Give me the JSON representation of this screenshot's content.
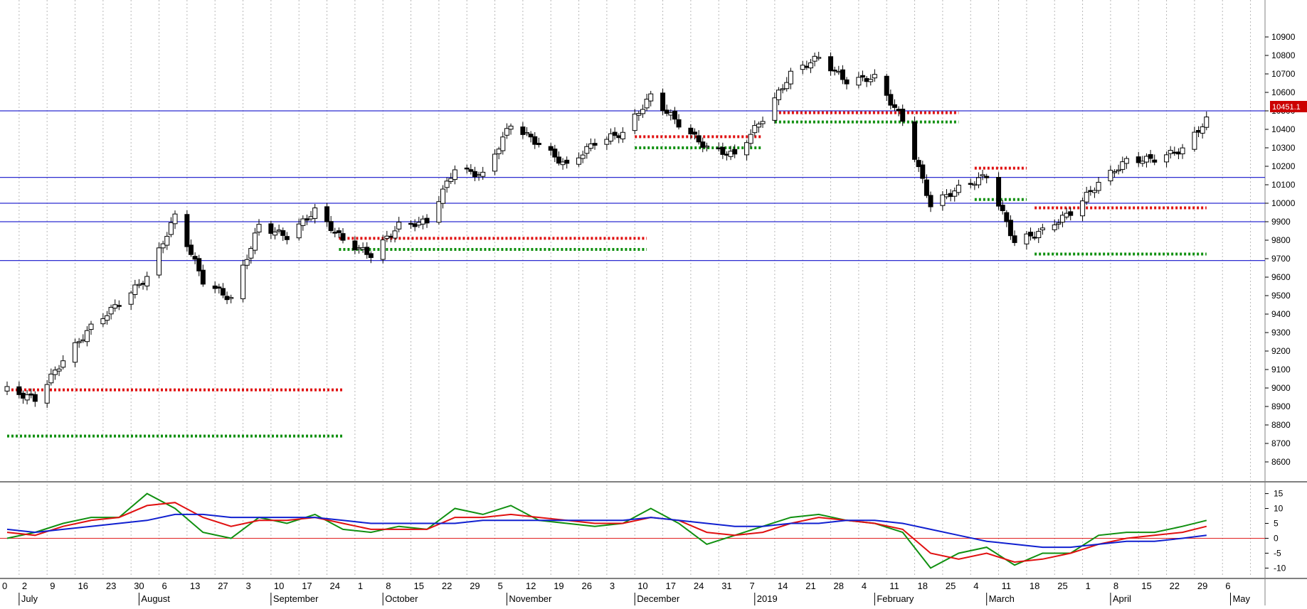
{
  "chart_data": {
    "type": "candlestick",
    "price_axis": {
      "ylim": [
        8500,
        11100
      ],
      "ticks": [
        8600,
        8700,
        8800,
        8900,
        9000,
        9100,
        9200,
        9300,
        9400,
        9500,
        9600,
        9700,
        9800,
        9900,
        10000,
        10100,
        10200,
        10300,
        10400,
        10500,
        10600,
        10700,
        10800,
        10900
      ]
    },
    "last_price_label": "10451.1",
    "indicator_axis": {
      "ylim": [
        -13,
        18
      ],
      "ticks": [
        15,
        10,
        5,
        0,
        -5,
        -10
      ],
      "tick_labels": [
        "15",
        "10",
        "5",
        "0",
        "-5",
        "-10"
      ]
    },
    "x_day_labels": [
      "0",
      "2",
      "9",
      "16",
      "23",
      "30",
      "6",
      "13",
      "27",
      "3",
      "10",
      "17",
      "24",
      "1",
      "8",
      "15",
      "22",
      "29",
      "5",
      "12",
      "19",
      "26",
      "3",
      "10",
      "17",
      "24",
      "31",
      "7",
      "14",
      "21",
      "28",
      "4",
      "11",
      "18",
      "25",
      "4",
      "11",
      "18",
      "25",
      "1",
      "8",
      "15",
      "22",
      "29",
      "6"
    ],
    "x_month_labels": [
      "July",
      "August",
      "September",
      "October",
      "November",
      "December",
      "2019",
      "February",
      "March",
      "April",
      "May"
    ],
    "horizontal_levels": [
      10500,
      10140,
      10000,
      9900,
      9690
    ],
    "dotted_levels": [
      {
        "color": "red",
        "value": 8990,
        "from": "2018-06-29",
        "to": "2018-09-21"
      },
      {
        "color": "green",
        "value": 8740,
        "from": "2018-06-29",
        "to": "2018-09-21"
      },
      {
        "color": "red",
        "value": 9810,
        "from": "2018-09-20",
        "to": "2018-12-06"
      },
      {
        "color": "green",
        "value": 9750,
        "from": "2018-09-20",
        "to": "2018-12-06"
      },
      {
        "color": "red",
        "value": 10360,
        "from": "2018-12-03",
        "to": "2019-01-04"
      },
      {
        "color": "green",
        "value": 10300,
        "from": "2018-12-03",
        "to": "2019-01-04"
      },
      {
        "color": "red",
        "value": 10490,
        "from": "2019-01-07",
        "to": "2019-02-22"
      },
      {
        "color": "green",
        "value": 10440,
        "from": "2019-01-07",
        "to": "2019-02-22"
      },
      {
        "color": "red",
        "value": 10190,
        "from": "2019-02-26",
        "to": "2019-03-11"
      },
      {
        "color": "green",
        "value": 10020,
        "from": "2019-02-26",
        "to": "2019-03-11"
      },
      {
        "color": "red",
        "value": 9975,
        "from": "2019-03-13",
        "to": "2019-04-25"
      },
      {
        "color": "green",
        "value": 9725,
        "from": "2019-03-13",
        "to": "2019-04-25"
      }
    ],
    "weekly_closes": [
      {
        "date": "2018-06-29",
        "close": 8990
      },
      {
        "date": "2018-07-06",
        "close": 8940
      },
      {
        "date": "2018-07-13",
        "close": 9150
      },
      {
        "date": "2018-07-20",
        "close": 9330
      },
      {
        "date": "2018-07-27",
        "close": 9460
      },
      {
        "date": "2018-08-03",
        "close": 9600
      },
      {
        "date": "2018-08-10",
        "close": 9930
      },
      {
        "date": "2018-08-17",
        "close": 9580
      },
      {
        "date": "2018-08-24",
        "close": 9480
      },
      {
        "date": "2018-08-31",
        "close": 9880
      },
      {
        "date": "2018-09-07",
        "close": 9820
      },
      {
        "date": "2018-09-14",
        "close": 9960
      },
      {
        "date": "2018-09-21",
        "close": 9800
      },
      {
        "date": "2018-09-28",
        "close": 9720
      },
      {
        "date": "2018-10-05",
        "close": 9880
      },
      {
        "date": "2018-10-12",
        "close": 9900
      },
      {
        "date": "2018-10-19",
        "close": 10190
      },
      {
        "date": "2018-10-26",
        "close": 10150
      },
      {
        "date": "2018-11-02",
        "close": 10430
      },
      {
        "date": "2018-11-09",
        "close": 10320
      },
      {
        "date": "2018-11-16",
        "close": 10200
      },
      {
        "date": "2018-11-23",
        "close": 10330
      },
      {
        "date": "2018-11-30",
        "close": 10380
      },
      {
        "date": "2018-12-07",
        "close": 10580
      },
      {
        "date": "2018-12-14",
        "close": 10430
      },
      {
        "date": "2018-12-21",
        "close": 10300
      },
      {
        "date": "2018-12-28",
        "close": 10260
      },
      {
        "date": "2019-01-04",
        "close": 10460
      },
      {
        "date": "2019-01-11",
        "close": 10700
      },
      {
        "date": "2019-01-18",
        "close": 10790
      },
      {
        "date": "2019-01-25",
        "close": 10660
      },
      {
        "date": "2019-02-01",
        "close": 10680
      },
      {
        "date": "2019-02-08",
        "close": 10450
      },
      {
        "date": "2019-02-15",
        "close": 9990
      },
      {
        "date": "2019-02-22",
        "close": 10080
      },
      {
        "date": "2019-03-01",
        "close": 10150
      },
      {
        "date": "2019-03-08",
        "close": 9790
      },
      {
        "date": "2019-03-15",
        "close": 9850
      },
      {
        "date": "2019-03-22",
        "close": 9950
      },
      {
        "date": "2019-03-29",
        "close": 10110
      },
      {
        "date": "2019-04-05",
        "close": 10230
      },
      {
        "date": "2019-04-12",
        "close": 10240
      },
      {
        "date": "2019-04-19",
        "close": 10290
      },
      {
        "date": "2019-04-25",
        "close": 10451
      }
    ],
    "indicator": {
      "zero_line": true,
      "series": [
        {
          "color": "green",
          "values": [
            {
              "date": "2018-06-29",
              "v": 0
            },
            {
              "date": "2018-07-06",
              "v": 2
            },
            {
              "date": "2018-07-13",
              "v": 5
            },
            {
              "date": "2018-07-20",
              "v": 7
            },
            {
              "date": "2018-07-27",
              "v": 7
            },
            {
              "date": "2018-08-03",
              "v": 15
            },
            {
              "date": "2018-08-10",
              "v": 10
            },
            {
              "date": "2018-08-17",
              "v": 2
            },
            {
              "date": "2018-08-24",
              "v": 0
            },
            {
              "date": "2018-08-31",
              "v": 7
            },
            {
              "date": "2018-09-07",
              "v": 5
            },
            {
              "date": "2018-09-14",
              "v": 8
            },
            {
              "date": "2018-09-21",
              "v": 3
            },
            {
              "date": "2018-09-28",
              "v": 2
            },
            {
              "date": "2018-10-05",
              "v": 4
            },
            {
              "date": "2018-10-12",
              "v": 3
            },
            {
              "date": "2018-10-19",
              "v": 10
            },
            {
              "date": "2018-10-26",
              "v": 8
            },
            {
              "date": "2018-11-02",
              "v": 11
            },
            {
              "date": "2018-11-09",
              "v": 6
            },
            {
              "date": "2018-11-16",
              "v": 5
            },
            {
              "date": "2018-11-23",
              "v": 4
            },
            {
              "date": "2018-11-30",
              "v": 5
            },
            {
              "date": "2018-12-07",
              "v": 10
            },
            {
              "date": "2018-12-14",
              "v": 5
            },
            {
              "date": "2018-12-21",
              "v": -2
            },
            {
              "date": "2018-12-28",
              "v": 1
            },
            {
              "date": "2019-01-04",
              "v": 4
            },
            {
              "date": "2019-01-11",
              "v": 7
            },
            {
              "date": "2019-01-18",
              "v": 8
            },
            {
              "date": "2019-01-25",
              "v": 6
            },
            {
              "date": "2019-02-01",
              "v": 5
            },
            {
              "date": "2019-02-08",
              "v": 2
            },
            {
              "date": "2019-02-15",
              "v": -10
            },
            {
              "date": "2019-02-22",
              "v": -5
            },
            {
              "date": "2019-03-01",
              "v": -3
            },
            {
              "date": "2019-03-08",
              "v": -9
            },
            {
              "date": "2019-03-15",
              "v": -5
            },
            {
              "date": "2019-03-22",
              "v": -5
            },
            {
              "date": "2019-03-29",
              "v": 1
            },
            {
              "date": "2019-04-05",
              "v": 2
            },
            {
              "date": "2019-04-12",
              "v": 2
            },
            {
              "date": "2019-04-19",
              "v": 4
            },
            {
              "date": "2019-04-25",
              "v": 6
            }
          ]
        },
        {
          "color": "red",
          "values": [
            {
              "date": "2018-06-29",
              "v": 2
            },
            {
              "date": "2018-07-06",
              "v": 1
            },
            {
              "date": "2018-07-13",
              "v": 4
            },
            {
              "date": "2018-07-20",
              "v": 6
            },
            {
              "date": "2018-07-27",
              "v": 7
            },
            {
              "date": "2018-08-03",
              "v": 11
            },
            {
              "date": "2018-08-10",
              "v": 12
            },
            {
              "date": "2018-08-17",
              "v": 7
            },
            {
              "date": "2018-08-24",
              "v": 4
            },
            {
              "date": "2018-08-31",
              "v": 6
            },
            {
              "date": "2018-09-07",
              "v": 6
            },
            {
              "date": "2018-09-14",
              "v": 7
            },
            {
              "date": "2018-09-21",
              "v": 5
            },
            {
              "date": "2018-09-28",
              "v": 3
            },
            {
              "date": "2018-10-05",
              "v": 3
            },
            {
              "date": "2018-10-12",
              "v": 3
            },
            {
              "date": "2018-10-19",
              "v": 7
            },
            {
              "date": "2018-10-26",
              "v": 7
            },
            {
              "date": "2018-11-02",
              "v": 8
            },
            {
              "date": "2018-11-09",
              "v": 7
            },
            {
              "date": "2018-11-16",
              "v": 6
            },
            {
              "date": "2018-11-23",
              "v": 5
            },
            {
              "date": "2018-11-30",
              "v": 5
            },
            {
              "date": "2018-12-07",
              "v": 7
            },
            {
              "date": "2018-12-14",
              "v": 6
            },
            {
              "date": "2018-12-21",
              "v": 2
            },
            {
              "date": "2018-12-28",
              "v": 1
            },
            {
              "date": "2019-01-04",
              "v": 2
            },
            {
              "date": "2019-01-11",
              "v": 5
            },
            {
              "date": "2019-01-18",
              "v": 7
            },
            {
              "date": "2019-01-25",
              "v": 6
            },
            {
              "date": "2019-02-01",
              "v": 5
            },
            {
              "date": "2019-02-08",
              "v": 3
            },
            {
              "date": "2019-02-15",
              "v": -5
            },
            {
              "date": "2019-02-22",
              "v": -7
            },
            {
              "date": "2019-03-01",
              "v": -5
            },
            {
              "date": "2019-03-08",
              "v": -8
            },
            {
              "date": "2019-03-15",
              "v": -7
            },
            {
              "date": "2019-03-22",
              "v": -5
            },
            {
              "date": "2019-03-29",
              "v": -2
            },
            {
              "date": "2019-04-05",
              "v": 0
            },
            {
              "date": "2019-04-12",
              "v": 1
            },
            {
              "date": "2019-04-19",
              "v": 2
            },
            {
              "date": "2019-04-25",
              "v": 4
            }
          ]
        },
        {
          "color": "blue",
          "values": [
            {
              "date": "2018-06-29",
              "v": 3
            },
            {
              "date": "2018-07-06",
              "v": 2
            },
            {
              "date": "2018-07-13",
              "v": 3
            },
            {
              "date": "2018-07-20",
              "v": 4
            },
            {
              "date": "2018-07-27",
              "v": 5
            },
            {
              "date": "2018-08-03",
              "v": 6
            },
            {
              "date": "2018-08-10",
              "v": 8
            },
            {
              "date": "2018-08-17",
              "v": 8
            },
            {
              "date": "2018-08-24",
              "v": 7
            },
            {
              "date": "2018-08-31",
              "v": 7
            },
            {
              "date": "2018-09-07",
              "v": 7
            },
            {
              "date": "2018-09-14",
              "v": 7
            },
            {
              "date": "2018-09-21",
              "v": 6
            },
            {
              "date": "2018-09-28",
              "v": 5
            },
            {
              "date": "2018-10-05",
              "v": 5
            },
            {
              "date": "2018-10-12",
              "v": 5
            },
            {
              "date": "2018-10-19",
              "v": 5
            },
            {
              "date": "2018-10-26",
              "v": 6
            },
            {
              "date": "2018-11-02",
              "v": 6
            },
            {
              "date": "2018-11-09",
              "v": 6
            },
            {
              "date": "2018-11-16",
              "v": 6
            },
            {
              "date": "2018-11-23",
              "v": 6
            },
            {
              "date": "2018-11-30",
              "v": 6
            },
            {
              "date": "2018-12-07",
              "v": 7
            },
            {
              "date": "2018-12-14",
              "v": 6
            },
            {
              "date": "2018-12-21",
              "v": 5
            },
            {
              "date": "2018-12-28",
              "v": 4
            },
            {
              "date": "2019-01-04",
              "v": 4
            },
            {
              "date": "2019-01-11",
              "v": 5
            },
            {
              "date": "2019-01-18",
              "v": 5
            },
            {
              "date": "2019-01-25",
              "v": 6
            },
            {
              "date": "2019-02-01",
              "v": 6
            },
            {
              "date": "2019-02-08",
              "v": 5
            },
            {
              "date": "2019-02-15",
              "v": 3
            },
            {
              "date": "2019-02-22",
              "v": 1
            },
            {
              "date": "2019-03-01",
              "v": -1
            },
            {
              "date": "2019-03-08",
              "v": -2
            },
            {
              "date": "2019-03-15",
              "v": -3
            },
            {
              "date": "2019-03-22",
              "v": -3
            },
            {
              "date": "2019-03-29",
              "v": -2
            },
            {
              "date": "2019-04-05",
              "v": -1
            },
            {
              "date": "2019-04-12",
              "v": -1
            },
            {
              "date": "2019-04-19",
              "v": 0
            },
            {
              "date": "2019-04-25",
              "v": 1
            }
          ]
        }
      ]
    }
  }
}
